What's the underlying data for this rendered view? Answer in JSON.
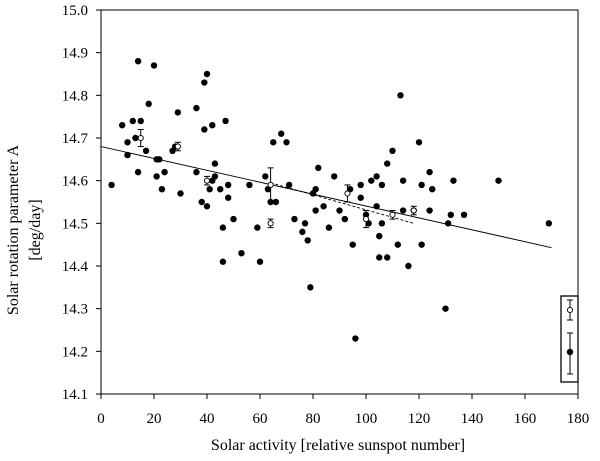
{
  "chart_data": {
    "type": "scatter",
    "title": "",
    "xlabel": "Solar activity [relative sunspot number]",
    "ylabel_line1": "Solar rotation parameter A",
    "ylabel_line2": "[deg/day]",
    "xlim": [
      0,
      180
    ],
    "ylim": [
      14.1,
      15.0
    ],
    "x_ticks": [
      0,
      20,
      40,
      60,
      80,
      100,
      120,
      140,
      160,
      180
    ],
    "y_ticks": [
      "14.1",
      "14.2",
      "14.3",
      "14.4",
      "14.5",
      "14.6",
      "14.7",
      "14.8",
      "14.9",
      "15.0"
    ],
    "grid": false,
    "legend": "bottom-right, symbols only",
    "series": [
      {
        "marker": "filled",
        "points": [
          [
            4,
            14.59
          ],
          [
            8,
            14.73
          ],
          [
            10,
            14.66
          ],
          [
            10,
            14.69
          ],
          [
            12,
            14.74
          ],
          [
            13,
            14.7
          ],
          [
            14,
            14.62
          ],
          [
            14,
            14.88
          ],
          [
            15,
            14.74
          ],
          [
            17,
            14.67
          ],
          [
            18,
            14.78
          ],
          [
            20,
            14.87
          ],
          [
            21,
            14.61
          ],
          [
            21,
            14.65
          ],
          [
            22,
            14.65
          ],
          [
            23,
            14.58
          ],
          [
            24,
            14.62
          ],
          [
            27,
            14.67
          ],
          [
            28,
            14.68
          ],
          [
            29,
            14.76
          ],
          [
            30,
            14.57
          ],
          [
            36,
            14.62
          ],
          [
            36,
            14.77
          ],
          [
            38,
            14.55
          ],
          [
            39,
            14.72
          ],
          [
            39,
            14.83
          ],
          [
            40,
            14.85
          ],
          [
            40,
            14.54
          ],
          [
            41,
            14.58
          ],
          [
            42,
            14.73
          ],
          [
            42,
            14.6
          ],
          [
            43,
            14.64
          ],
          [
            43,
            14.61
          ],
          [
            45,
            14.58
          ],
          [
            46,
            14.49
          ],
          [
            46,
            14.41
          ],
          [
            47,
            14.74
          ],
          [
            48,
            14.59
          ],
          [
            48,
            14.56
          ],
          [
            50,
            14.51
          ],
          [
            53,
            14.43
          ],
          [
            56,
            14.59
          ],
          [
            59,
            14.49
          ],
          [
            60,
            14.41
          ],
          [
            62,
            14.61
          ],
          [
            63,
            14.58
          ],
          [
            64,
            14.55
          ],
          [
            65,
            14.69
          ],
          [
            66,
            14.55
          ],
          [
            68,
            14.71
          ],
          [
            70,
            14.69
          ],
          [
            71,
            14.59
          ],
          [
            73,
            14.51
          ],
          [
            76,
            14.48
          ],
          [
            77,
            14.5
          ],
          [
            78,
            14.46
          ],
          [
            79,
            14.35
          ],
          [
            80,
            14.57
          ],
          [
            81,
            14.53
          ],
          [
            81,
            14.58
          ],
          [
            82,
            14.63
          ],
          [
            84,
            14.54
          ],
          [
            86,
            14.49
          ],
          [
            88,
            14.61
          ],
          [
            90,
            14.53
          ],
          [
            92,
            14.51
          ],
          [
            94,
            14.58
          ],
          [
            95,
            14.45
          ],
          [
            96,
            14.23
          ],
          [
            98,
            14.59
          ],
          [
            98,
            14.56
          ],
          [
            100,
            14.52
          ],
          [
            101,
            14.5
          ],
          [
            102,
            14.6
          ],
          [
            104,
            14.61
          ],
          [
            104,
            14.54
          ],
          [
            105,
            14.42
          ],
          [
            105,
            14.47
          ],
          [
            106,
            14.59
          ],
          [
            106,
            14.5
          ],
          [
            108,
            14.64
          ],
          [
            108,
            14.42
          ],
          [
            110,
            14.67
          ],
          [
            112,
            14.45
          ],
          [
            113,
            14.8
          ],
          [
            114,
            14.53
          ],
          [
            114,
            14.6
          ],
          [
            116,
            14.4
          ],
          [
            118,
            14.53
          ],
          [
            120,
            14.69
          ],
          [
            121,
            14.45
          ],
          [
            121,
            14.59
          ],
          [
            124,
            14.62
          ],
          [
            124,
            14.53
          ],
          [
            125,
            14.58
          ],
          [
            130,
            14.3
          ],
          [
            131,
            14.5
          ],
          [
            132,
            14.52
          ],
          [
            133,
            14.6
          ],
          [
            137,
            14.52
          ],
          [
            150,
            14.6
          ],
          [
            169,
            14.5
          ]
        ]
      },
      {
        "marker": "open",
        "points": [
          {
            "x": 15,
            "y": 14.7,
            "err": 0.02
          },
          {
            "x": 29,
            "y": 14.68,
            "err": 0.01
          },
          {
            "x": 40,
            "y": 14.6,
            "err": 0.01
          },
          {
            "x": 64,
            "y": 14.59,
            "err": 0.04
          },
          {
            "x": 64,
            "y": 14.5,
            "err": 0.01
          },
          {
            "x": 93,
            "y": 14.57,
            "err": 0.02
          },
          {
            "x": 100,
            "y": 14.51,
            "err": 0.02
          },
          {
            "x": 110,
            "y": 14.52,
            "err": 0.01
          },
          {
            "x": 118,
            "y": 14.53,
            "err": 0.01
          }
        ]
      }
    ],
    "trendlines": [
      {
        "style": "solid",
        "x": [
          0,
          170
        ],
        "y": [
          14.68,
          14.443
        ]
      },
      {
        "style": "dashed",
        "x": [
          64,
          118
        ],
        "y": [
          14.595,
          14.5
        ]
      }
    ]
  }
}
